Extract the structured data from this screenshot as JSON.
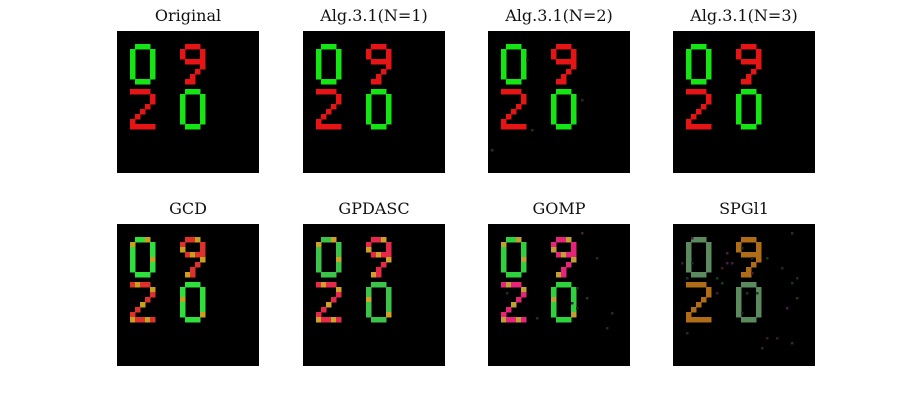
{
  "panels": [
    {
      "title": "Original",
      "color_a": "#14e614",
      "color_b": "#e61414",
      "style": "clean",
      "noise": 0
    },
    {
      "title": "Alg.3.1(N=1)",
      "color_a": "#14e614",
      "color_b": "#e61414",
      "style": "clean",
      "noise": 0
    },
    {
      "title": "Alg.3.1(N=2)",
      "color_a": "#14e614",
      "color_b": "#e61414",
      "style": "clean",
      "noise": 4
    },
    {
      "title": "Alg.3.1(N=3)",
      "color_a": "#14e614",
      "color_b": "#e61414",
      "style": "clean",
      "noise": 0
    },
    {
      "title": "GCD",
      "color_a": "#2ee03c",
      "color_b": "#e0302c",
      "mix": "#c8a01e",
      "style": "mixed",
      "noise": 0
    },
    {
      "title": "GPDASC",
      "color_a": "#3cc448",
      "color_b": "#e82848",
      "mix": "#d0a028",
      "style": "mixed",
      "noise": 0
    },
    {
      "title": "GOMP",
      "color_a": "#2ed23c",
      "color_b": "#e8247a",
      "mix": "#c0a030",
      "style": "mixed",
      "noise": 10
    },
    {
      "title": "SPGl1",
      "color_a": "#5a8a5e",
      "color_b": "#b06c16",
      "style": "clean",
      "noise": 30
    }
  ]
}
